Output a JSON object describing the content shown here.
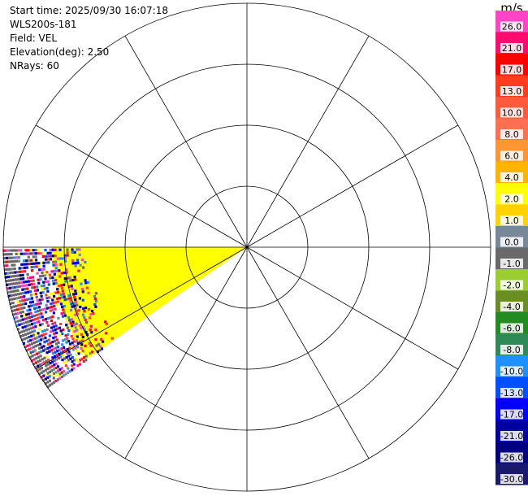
{
  "info": {
    "start_time": "Start time: 2025/09/30 16:07:18",
    "instrument": "WLS200s-181",
    "field": "Field: VEL",
    "elevation": "Elevation(deg): 2.50",
    "nrays": "NRays: 60"
  },
  "colorbar": {
    "unit": "m/s",
    "bins": [
      {
        "label": "26.0",
        "color": "#ff44c8"
      },
      {
        "label": "21.0",
        "color": "#ff0a6e"
      },
      {
        "label": "17.0",
        "color": "#ff0000"
      },
      {
        "label": "13.0",
        "color": "#ff3c1e"
      },
      {
        "label": "10.0",
        "color": "#ff5a3c"
      },
      {
        "label": "8.0",
        "color": "#ff7050"
      },
      {
        "label": "6.0",
        "color": "#ff9632"
      },
      {
        "label": "4.0",
        "color": "#ffb400"
      },
      {
        "label": "2.0",
        "color": "#ffff00"
      },
      {
        "label": "1.0",
        "color": "#ffd200"
      },
      {
        "label": "0.0",
        "color": "#778899"
      },
      {
        "label": "-1.0",
        "color": "#696969"
      },
      {
        "label": "-2.0",
        "color": "#9acd32"
      },
      {
        "label": "-4.0",
        "color": "#6b8e23"
      },
      {
        "label": "-6.0",
        "color": "#228b22"
      },
      {
        "label": "-8.0",
        "color": "#2e8b57"
      },
      {
        "label": "-10.0",
        "color": "#1e90ff"
      },
      {
        "label": "-13.0",
        "color": "#0050ff"
      },
      {
        "label": "-17.0",
        "color": "#0000ff"
      },
      {
        "label": "-21.0",
        "color": "#0000a0"
      },
      {
        "label": "-26.0",
        "color": "#000080"
      },
      {
        "label": "-30.0",
        "color": "#191970"
      }
    ]
  },
  "chart_data": {
    "type": "heatmap",
    "projection": "polar PPI",
    "field": "VEL",
    "units": "m/s",
    "range_rings": 4,
    "spokes_deg": 30,
    "data_sector": {
      "azimuth_start_deg": 235,
      "azimuth_end_deg": 270,
      "near_range_fraction": 0.0,
      "yellow_fraction": 0.8,
      "noise_start_fraction": 0.78,
      "near_value": 2.0,
      "noise_values": [
        -21.0,
        -17.0,
        -13.0,
        -10.0,
        0.0,
        -1.0,
        2.0,
        13.0,
        17.0,
        21.0,
        26.0,
        -26.0
      ],
      "far_edge_value": -1.0
    }
  }
}
